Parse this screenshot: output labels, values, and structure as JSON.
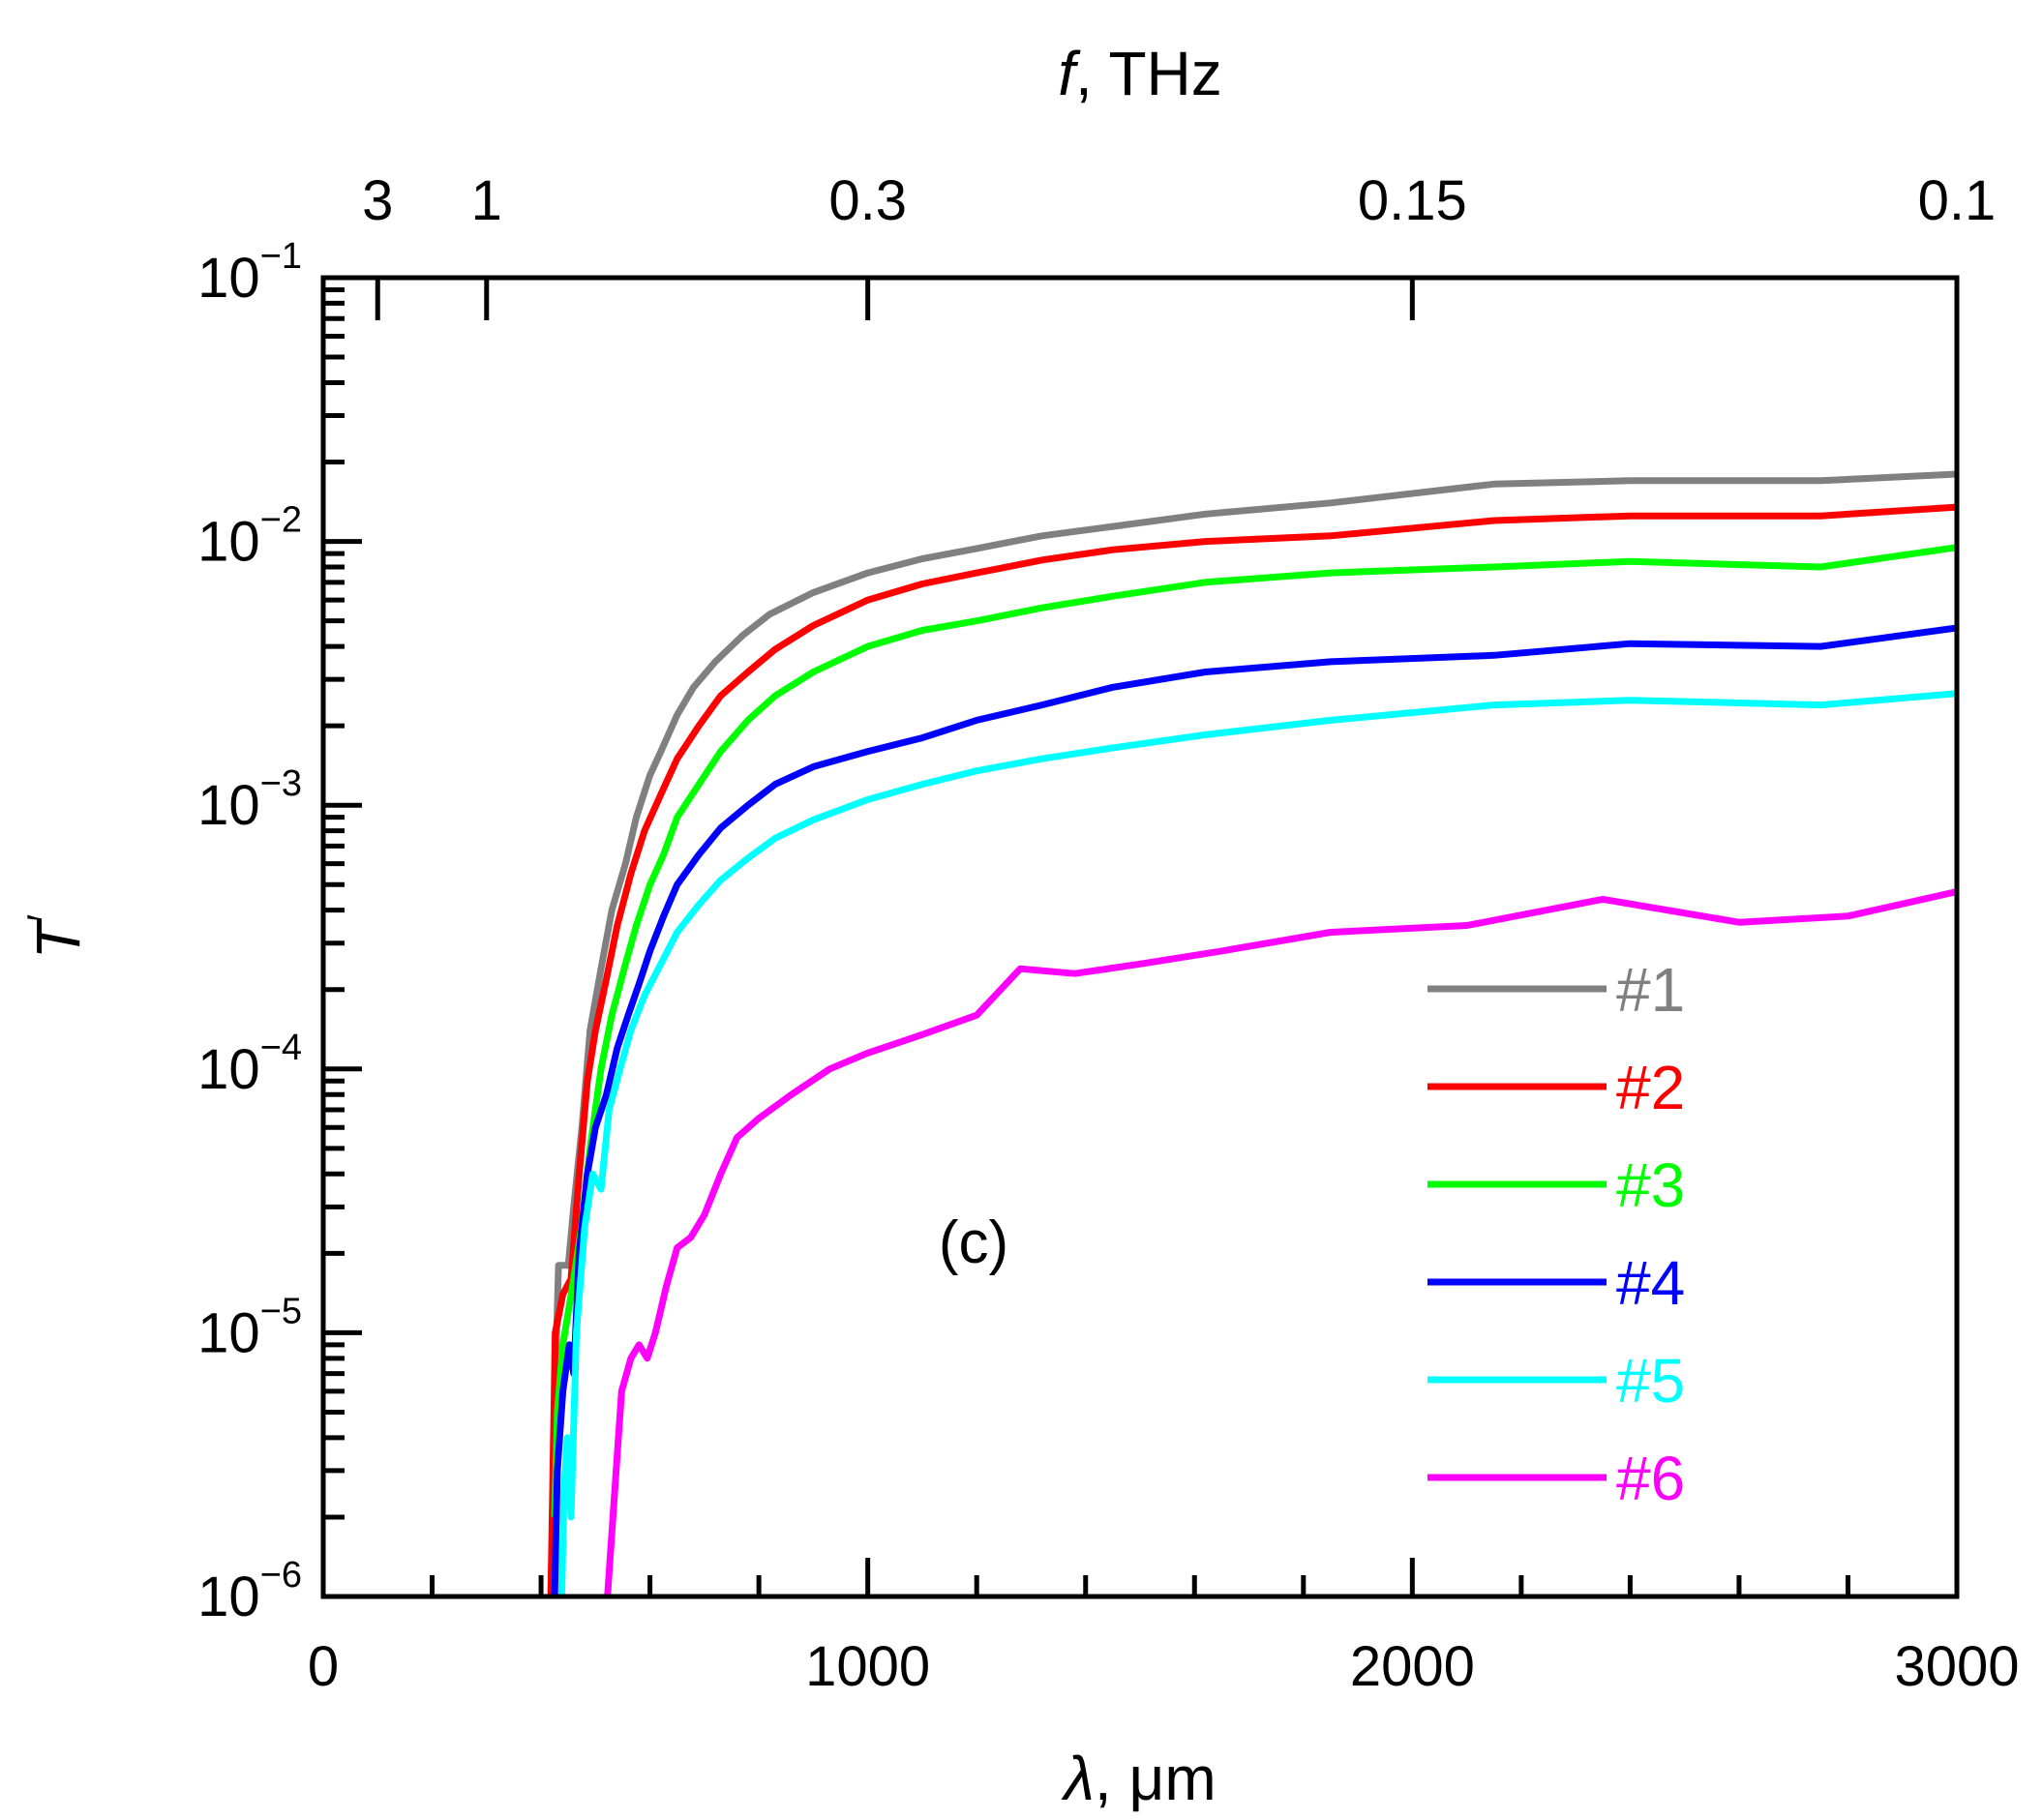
{
  "chart_data": {
    "type": "line",
    "xlabel_symbol": "λ",
    "xlabel_unit": ", μm",
    "x2label_symbol": "f",
    "x2label_unit": ", THz",
    "ylabel_symbol": "T",
    "ylabel_prime": "′",
    "xlim": [
      0,
      3000
    ],
    "ylim": [
      1e-06,
      0.1
    ],
    "yscale": "log",
    "x_ticks": [
      {
        "value": 0,
        "label": "0"
      },
      {
        "value": 1000,
        "label": "1000"
      },
      {
        "value": 2000,
        "label": "2000"
      },
      {
        "value": 3000,
        "label": "3000"
      }
    ],
    "x_minor_step": 200,
    "top_ticks": [
      {
        "value": 3,
        "label": "3"
      },
      {
        "value": 1,
        "label": "1"
      },
      {
        "value": 0.3,
        "label": "0.3"
      },
      {
        "value": 0.15,
        "label": "0.15"
      },
      {
        "value": 0.1,
        "label": "0.1"
      }
    ],
    "y_ticks": [
      {
        "value": 1e-06,
        "base": "10",
        "exp": "−6"
      },
      {
        "value": 1e-05,
        "base": "10",
        "exp": "−5"
      },
      {
        "value": 0.0001,
        "base": "10",
        "exp": "−4"
      },
      {
        "value": 0.001,
        "base": "10",
        "exp": "−3"
      },
      {
        "value": 0.01,
        "base": "10",
        "exp": "−2"
      },
      {
        "value": 0.1,
        "base": "10",
        "exp": "−1"
      }
    ],
    "annotation": "(c)",
    "legend_position": "lower-right",
    "series": [
      {
        "name": "#1",
        "color": "#808080",
        "points": [
          [
            418,
            1e-06
          ],
          [
            428,
            9e-06
          ],
          [
            432,
            1.8e-05
          ],
          [
            450,
            1.8e-05
          ],
          [
            460,
            3e-05
          ],
          [
            475,
            6e-05
          ],
          [
            490,
            0.00014
          ],
          [
            510,
            0.00024
          ],
          [
            530,
            0.0004
          ],
          [
            555,
            0.0006
          ],
          [
            575,
            0.0009
          ],
          [
            600,
            0.0013
          ],
          [
            620,
            0.0016
          ],
          [
            650,
            0.0022
          ],
          [
            680,
            0.0028
          ],
          [
            720,
            0.0035
          ],
          [
            770,
            0.0044
          ],
          [
            820,
            0.0053
          ],
          [
            900,
            0.0064
          ],
          [
            1000,
            0.0076
          ],
          [
            1100,
            0.0086
          ],
          [
            1200,
            0.0094
          ],
          [
            1320,
            0.0105
          ],
          [
            1450,
            0.0114
          ],
          [
            1620,
            0.0127
          ],
          [
            1850,
            0.014
          ],
          [
            2150,
            0.0165
          ],
          [
            2400,
            0.017
          ],
          [
            2600,
            0.017
          ],
          [
            2750,
            0.017
          ],
          [
            3000,
            0.018
          ]
        ]
      },
      {
        "name": "#2",
        "color": "#ff0000",
        "points": [
          [
            418,
            1e-06
          ],
          [
            426,
            1e-05
          ],
          [
            440,
            1.4e-05
          ],
          [
            455,
            1.6e-05
          ],
          [
            470,
            4e-05
          ],
          [
            485,
            9e-05
          ],
          [
            500,
            0.00014
          ],
          [
            520,
            0.00022
          ],
          [
            540,
            0.00035
          ],
          [
            565,
            0.00055
          ],
          [
            590,
            0.0008
          ],
          [
            620,
            0.0011
          ],
          [
            650,
            0.0015
          ],
          [
            690,
            0.002
          ],
          [
            730,
            0.0026
          ],
          [
            780,
            0.0032
          ],
          [
            830,
            0.0039
          ],
          [
            900,
            0.0048
          ],
          [
            1000,
            0.006
          ],
          [
            1100,
            0.0069
          ],
          [
            1200,
            0.0076
          ],
          [
            1320,
            0.0085
          ],
          [
            1450,
            0.0093
          ],
          [
            1620,
            0.01
          ],
          [
            1850,
            0.0105
          ],
          [
            2150,
            0.012
          ],
          [
            2400,
            0.0125
          ],
          [
            2750,
            0.0125
          ],
          [
            3000,
            0.0135
          ]
        ]
      },
      {
        "name": "#3",
        "color": "#00ff00",
        "points": [
          [
            425,
            2e-06
          ],
          [
            430,
            5e-06
          ],
          [
            440,
            9e-06
          ],
          [
            460,
            1.6e-05
          ],
          [
            475,
            2.6e-05
          ],
          [
            490,
            5e-05
          ],
          [
            510,
            0.0001
          ],
          [
            530,
            0.00016
          ],
          [
            555,
            0.00025
          ],
          [
            575,
            0.00035
          ],
          [
            600,
            0.0005
          ],
          [
            625,
            0.00065
          ],
          [
            650,
            0.0009
          ],
          [
            690,
            0.0012
          ],
          [
            730,
            0.0016
          ],
          [
            780,
            0.0021
          ],
          [
            830,
            0.0026
          ],
          [
            900,
            0.0032
          ],
          [
            1000,
            0.004
          ],
          [
            1100,
            0.0046
          ],
          [
            1200,
            0.005
          ],
          [
            1320,
            0.0056
          ],
          [
            1450,
            0.0062
          ],
          [
            1620,
            0.007
          ],
          [
            1850,
            0.0076
          ],
          [
            2150,
            0.008
          ],
          [
            2400,
            0.0084
          ],
          [
            2750,
            0.008
          ],
          [
            3000,
            0.0095
          ]
        ]
      },
      {
        "name": "#4",
        "color": "#0000ff",
        "points": [
          [
            425,
            1e-06
          ],
          [
            430,
            3e-06
          ],
          [
            440,
            6e-06
          ],
          [
            452,
            9e-06
          ],
          [
            460,
            7e-06
          ],
          [
            470,
            2e-05
          ],
          [
            485,
            4e-05
          ],
          [
            500,
            6e-05
          ],
          [
            520,
            8e-05
          ],
          [
            540,
            0.00012
          ],
          [
            560,
            0.00016
          ],
          [
            580,
            0.00021
          ],
          [
            600,
            0.00028
          ],
          [
            625,
            0.00038
          ],
          [
            650,
            0.0005
          ],
          [
            690,
            0.00065
          ],
          [
            730,
            0.00082
          ],
          [
            780,
            0.001
          ],
          [
            830,
            0.0012
          ],
          [
            900,
            0.0014
          ],
          [
            1000,
            0.0016
          ],
          [
            1100,
            0.0018
          ],
          [
            1200,
            0.0021
          ],
          [
            1320,
            0.0024
          ],
          [
            1450,
            0.0028
          ],
          [
            1620,
            0.0032
          ],
          [
            1850,
            0.0035
          ],
          [
            2150,
            0.0037
          ],
          [
            2400,
            0.0041
          ],
          [
            2750,
            0.004
          ],
          [
            3000,
            0.0047
          ]
        ]
      },
      {
        "name": "#5",
        "color": "#00ffff",
        "points": [
          [
            438,
            1e-06
          ],
          [
            442,
            2.5e-06
          ],
          [
            448,
            4e-06
          ],
          [
            455,
            2e-06
          ],
          [
            465,
            1e-05
          ],
          [
            480,
            2.5e-05
          ],
          [
            495,
            4e-05
          ],
          [
            510,
            3.5e-05
          ],
          [
            525,
            7e-05
          ],
          [
            545,
            0.0001
          ],
          [
            565,
            0.00014
          ],
          [
            590,
            0.00019
          ],
          [
            620,
            0.00025
          ],
          [
            650,
            0.00033
          ],
          [
            690,
            0.00042
          ],
          [
            730,
            0.00052
          ],
          [
            780,
            0.00063
          ],
          [
            830,
            0.00075
          ],
          [
            900,
            0.00088
          ],
          [
            1000,
            0.00105
          ],
          [
            1100,
            0.0012
          ],
          [
            1200,
            0.00135
          ],
          [
            1320,
            0.0015
          ],
          [
            1450,
            0.00165
          ],
          [
            1620,
            0.00185
          ],
          [
            1850,
            0.0021
          ],
          [
            2150,
            0.0024
          ],
          [
            2400,
            0.0025
          ],
          [
            2750,
            0.0024
          ],
          [
            3000,
            0.00265
          ]
        ]
      },
      {
        "name": "#6",
        "color": "#ff00ff",
        "points": [
          [
            522,
            1e-06
          ],
          [
            548,
            6e-06
          ],
          [
            565,
            8e-06
          ],
          [
            580,
            9e-06
          ],
          [
            595,
            8e-06
          ],
          [
            610,
            1e-05
          ],
          [
            630,
            1.5e-05
          ],
          [
            650,
            2.1e-05
          ],
          [
            675,
            2.3e-05
          ],
          [
            700,
            2.8e-05
          ],
          [
            730,
            4e-05
          ],
          [
            760,
            5.5e-05
          ],
          [
            800,
            6.5e-05
          ],
          [
            860,
            8e-05
          ],
          [
            930,
            0.0001
          ],
          [
            1000,
            0.000115
          ],
          [
            1100,
            0.000135
          ],
          [
            1200,
            0.00016
          ],
          [
            1280,
            0.00024
          ],
          [
            1380,
            0.00023
          ],
          [
            1500,
            0.00025
          ],
          [
            1650,
            0.00028
          ],
          [
            1850,
            0.00033
          ],
          [
            2100,
            0.00035
          ],
          [
            2350,
            0.00044
          ],
          [
            2600,
            0.00036
          ],
          [
            2800,
            0.00038
          ],
          [
            3000,
            0.00047
          ]
        ]
      }
    ]
  }
}
